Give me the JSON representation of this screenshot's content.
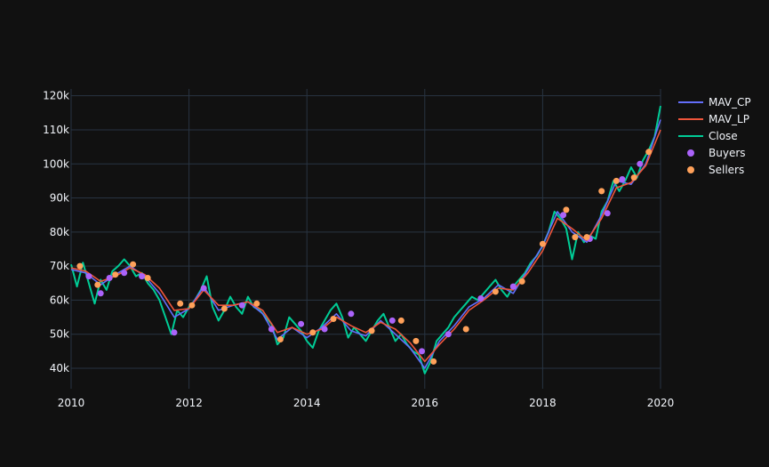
{
  "colors": {
    "background": "#111111",
    "grid": "#283442",
    "text": "#f2f5fa",
    "mav_cp": "#636efa",
    "mav_lp": "#ef553b",
    "close": "#00cc96",
    "buyers": "#ab63fa",
    "sellers": "#ffa15a"
  },
  "chart_data": {
    "type": "line",
    "title": "",
    "xlabel": "",
    "ylabel": "",
    "xlim": [
      2010.0,
      2020.0
    ],
    "ylim": [
      34000,
      122000
    ],
    "grid": true,
    "legend_position": "top-right",
    "x_ticks": [
      2010,
      2012,
      2014,
      2016,
      2018,
      2020
    ],
    "x_tick_labels": [
      "2010",
      "2012",
      "2014",
      "2016",
      "2018",
      "2020"
    ],
    "y_ticks": [
      40000,
      50000,
      60000,
      70000,
      80000,
      90000,
      100000,
      110000,
      120000
    ],
    "y_tick_labels": [
      "40k",
      "50k",
      "60k",
      "70k",
      "80k",
      "90k",
      "100k",
      "110k",
      "120k"
    ],
    "legend": [
      "MAV_CP",
      "MAV_LP",
      "Close",
      "Buyers",
      "Sellers"
    ],
    "series": [
      {
        "name": "MAV_CP",
        "kind": "line",
        "x": [
          2010.0,
          2010.25,
          2010.5,
          2010.75,
          2011.0,
          2011.25,
          2011.5,
          2011.75,
          2012.0,
          2012.25,
          2012.5,
          2012.75,
          2013.0,
          2013.25,
          2013.5,
          2013.75,
          2014.0,
          2014.25,
          2014.5,
          2014.75,
          2015.0,
          2015.25,
          2015.5,
          2015.75,
          2016.0,
          2016.25,
          2016.5,
          2016.75,
          2017.0,
          2017.25,
          2017.5,
          2017.75,
          2018.0,
          2018.25,
          2018.5,
          2018.75,
          2019.0,
          2019.25,
          2019.5,
          2019.75,
          2020.0
        ],
        "y": [
          69000,
          68000,
          64500,
          67500,
          70000,
          67000,
          62000,
          55000,
          57500,
          64000,
          57000,
          58500,
          59500,
          56000,
          48500,
          52000,
          49000,
          52000,
          56000,
          51000,
          49500,
          54000,
          50000,
          46000,
          40000,
          48000,
          52500,
          58000,
          60500,
          64500,
          62000,
          69000,
          76000,
          86000,
          80000,
          77000,
          85000,
          95000,
          94000,
          100000,
          113000
        ]
      },
      {
        "name": "MAV_LP",
        "kind": "line",
        "x": [
          2010.0,
          2010.25,
          2010.5,
          2010.75,
          2011.0,
          2011.25,
          2011.5,
          2011.75,
          2012.0,
          2012.25,
          2012.5,
          2012.75,
          2013.0,
          2013.25,
          2013.5,
          2013.75,
          2014.0,
          2014.25,
          2014.5,
          2014.75,
          2015.0,
          2015.25,
          2015.5,
          2015.75,
          2016.0,
          2016.25,
          2016.5,
          2016.75,
          2017.0,
          2017.25,
          2017.5,
          2017.75,
          2018.0,
          2018.25,
          2018.5,
          2018.75,
          2019.0,
          2019.25,
          2019.5,
          2019.75,
          2020.0
        ],
        "y": [
          69500,
          68500,
          65500,
          67000,
          69500,
          67500,
          63500,
          57000,
          57500,
          63000,
          58500,
          58500,
          59500,
          57000,
          50500,
          52000,
          50000,
          51500,
          55000,
          52500,
          50500,
          53500,
          51500,
          47500,
          42000,
          47000,
          51500,
          57000,
          60000,
          63500,
          63000,
          68000,
          74500,
          84000,
          81000,
          77500,
          84000,
          93000,
          94500,
          99500,
          110000
        ]
      },
      {
        "name": "Close",
        "kind": "line",
        "x": [
          2010.0,
          2010.1,
          2010.2,
          2010.3,
          2010.4,
          2010.5,
          2010.6,
          2010.7,
          2010.8,
          2010.9,
          2011.0,
          2011.1,
          2011.2,
          2011.3,
          2011.4,
          2011.5,
          2011.6,
          2011.7,
          2011.8,
          2011.9,
          2012.0,
          2012.1,
          2012.2,
          2012.3,
          2012.4,
          2012.5,
          2012.6,
          2012.7,
          2012.8,
          2012.9,
          2013.0,
          2013.1,
          2013.2,
          2013.3,
          2013.4,
          2013.5,
          2013.6,
          2013.7,
          2013.8,
          2013.9,
          2014.0,
          2014.1,
          2014.2,
          2014.3,
          2014.4,
          2014.5,
          2014.6,
          2014.7,
          2014.8,
          2014.9,
          2015.0,
          2015.1,
          2015.2,
          2015.3,
          2015.4,
          2015.5,
          2015.6,
          2015.7,
          2015.8,
          2015.9,
          2016.0,
          2016.1,
          2016.2,
          2016.3,
          2016.4,
          2016.5,
          2016.6,
          2016.7,
          2016.8,
          2016.9,
          2017.0,
          2017.1,
          2017.2,
          2017.3,
          2017.4,
          2017.5,
          2017.6,
          2017.7,
          2017.8,
          2017.9,
          2018.0,
          2018.1,
          2018.2,
          2018.3,
          2018.4,
          2018.5,
          2018.6,
          2018.7,
          2018.8,
          2018.9,
          2019.0,
          2019.1,
          2019.2,
          2019.3,
          2019.4,
          2019.5,
          2019.6,
          2019.7,
          2019.8,
          2019.9,
          2020.0
        ],
        "y": [
          70500,
          64000,
          71000,
          65000,
          59000,
          66000,
          63000,
          68500,
          70000,
          72000,
          70000,
          67000,
          68000,
          65000,
          63000,
          60000,
          55000,
          50000,
          57000,
          55000,
          58000,
          60000,
          63000,
          67000,
          58000,
          54000,
          57000,
          61000,
          58000,
          56000,
          61000,
          58000,
          57000,
          55000,
          53000,
          47000,
          49000,
          55000,
          53000,
          51000,
          48000,
          46000,
          51000,
          54000,
          57000,
          59000,
          55000,
          49000,
          52000,
          50000,
          48000,
          51000,
          54000,
          56000,
          52000,
          48000,
          50000,
          47000,
          45000,
          44000,
          38500,
          42000,
          48000,
          50000,
          52000,
          55000,
          57000,
          59000,
          61000,
          60000,
          62000,
          64000,
          66000,
          63000,
          61000,
          64000,
          66000,
          68000,
          71000,
          73000,
          76000,
          80000,
          86000,
          84000,
          81000,
          72000,
          80000,
          77000,
          79000,
          78000,
          86000,
          89000,
          95000,
          92000,
          95000,
          99000,
          96000,
          101000,
          104000,
          108000,
          117000
        ]
      },
      {
        "name": "Buyers",
        "kind": "markers",
        "x": [
          2010.3,
          2010.5,
          2010.65,
          2010.9,
          2011.2,
          2011.75,
          2012.25,
          2012.9,
          2013.4,
          2013.9,
          2014.3,
          2014.75,
          2015.45,
          2015.95,
          2016.4,
          2016.95,
          2017.5,
          2018.35,
          2018.8,
          2019.1,
          2019.35,
          2019.65
        ],
        "y": [
          67000,
          62000,
          66500,
          68000,
          67000,
          50500,
          63500,
          58500,
          51500,
          53000,
          51500,
          56000,
          54000,
          45000,
          50000,
          60500,
          64000,
          85000,
          78000,
          85500,
          95500,
          100000
        ]
      },
      {
        "name": "Sellers",
        "kind": "markers",
        "x": [
          2010.15,
          2010.45,
          2010.75,
          2011.05,
          2011.3,
          2011.85,
          2012.05,
          2012.6,
          2013.15,
          2013.55,
          2014.1,
          2014.45,
          2015.1,
          2015.6,
          2015.85,
          2016.15,
          2016.7,
          2017.2,
          2017.65,
          2018.0,
          2018.4,
          2018.55,
          2018.75,
          2019.0,
          2019.25,
          2019.55,
          2019.8
        ],
        "y": [
          70000,
          64500,
          67500,
          70500,
          66500,
          59000,
          58500,
          57500,
          59000,
          48500,
          50500,
          54500,
          51000,
          54000,
          48000,
          42000,
          51500,
          62500,
          65500,
          76500,
          86500,
          78500,
          78500,
          92000,
          95000,
          96000,
          103500
        ]
      }
    ]
  }
}
